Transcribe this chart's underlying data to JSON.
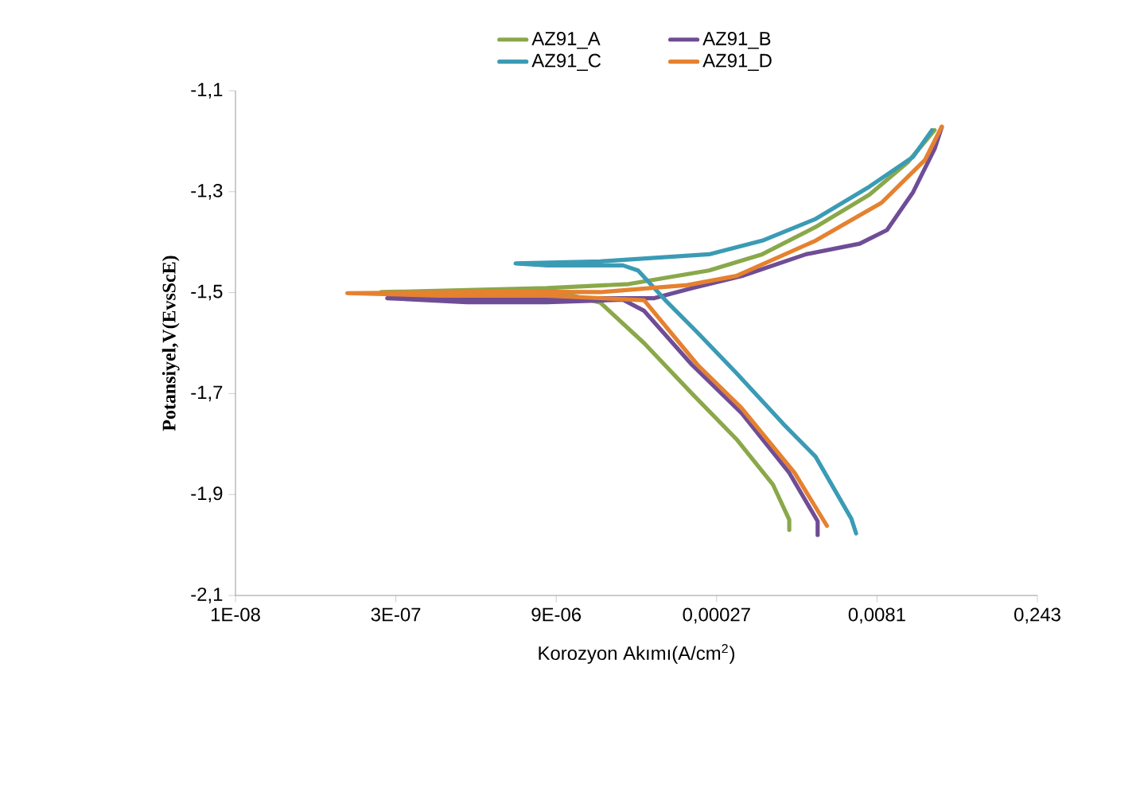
{
  "chart_data": {
    "type": "line",
    "xlabel": "Korozyon Akımı(A/cm$^{2}$)",
    "ylabel": "Potansiyel,V(EvsScE)",
    "log": "x",
    "legend": "top",
    "grid": false,
    "marker": "none",
    "line_style": "solid",
    "xlim": [
      1e-08,
      0.243
    ],
    "xticks": [
      {
        "value": 1e-08,
        "label": "1E-08"
      },
      {
        "value": 3e-07,
        "label": "3E-07"
      },
      {
        "value": 9e-06,
        "label": "9E-06"
      },
      {
        "value": 0.00027,
        "label": "0,00027"
      },
      {
        "value": 0.0081,
        "label": "0,0081"
      },
      {
        "value": 0.243,
        "label": "0,243"
      }
    ],
    "ylim": [
      -2.1,
      -1.1
    ],
    "yticks": [
      {
        "value": -2.1,
        "label": "-2,1"
      },
      {
        "value": -1.9,
        "label": "-1,9"
      },
      {
        "value": -1.7,
        "label": "-1,7"
      },
      {
        "value": -1.5,
        "label": "-1,5"
      },
      {
        "value": -1.3,
        "label": "-1,3"
      },
      {
        "value": -1.1,
        "label": "-1,1"
      }
    ],
    "series": [
      {
        "name": "AZ91_A",
        "color": "#8aa84a",
        "x": [
          0.00126,
          0.00126,
          0.00089,
          0.00041,
          0.00016,
          5.8e-05,
          2.3e-05,
          7.4e-06,
          2.2e-07,
          7.4e-06,
          4.2e-05,
          0.00023,
          0.00071,
          0.0022,
          0.0069,
          0.0155,
          0.0275
        ],
        "values": [
          -1.97,
          -1.95,
          -1.88,
          -1.79,
          -1.7,
          -1.6,
          -1.52,
          -1.493,
          -1.499,
          -1.491,
          -1.483,
          -1.456,
          -1.424,
          -1.37,
          -1.306,
          -1.242,
          -1.178
        ]
      },
      {
        "name": "AZ91_B",
        "color": "#6f4d96",
        "x": [
          0.0023,
          0.0023,
          0.00126,
          0.00046,
          0.00016,
          5.8e-05,
          3.7e-05,
          7.4e-06,
          1.35e-06,
          2.5e-07,
          7.2e-05,
          0.00016,
          0.00046,
          0.0018,
          0.0056,
          0.01,
          0.0174,
          0.0275,
          0.032
        ],
        "values": [
          -1.98,
          -1.953,
          -1.857,
          -1.739,
          -1.643,
          -1.536,
          -1.514,
          -1.519,
          -1.519,
          -1.511,
          -1.511,
          -1.491,
          -1.467,
          -1.424,
          -1.403,
          -1.376,
          -1.301,
          -1.215,
          -1.172
        ]
      },
      {
        "name": "AZ91_C",
        "color": "#3b9bb5",
        "x": [
          0.0052,
          0.0047,
          0.0022,
          0.00112,
          0.00041,
          0.00018,
          9.1e-05,
          5.1e-05,
          3.7e-05,
          7.4e-06,
          3.8e-06,
          2.3e-05,
          0.00023,
          0.00071,
          0.0022,
          0.0069,
          0.0174,
          0.026
        ],
        "values": [
          -1.977,
          -1.948,
          -1.825,
          -1.761,
          -1.659,
          -1.579,
          -1.515,
          -1.456,
          -1.446,
          -1.446,
          -1.442,
          -1.438,
          -1.424,
          -1.397,
          -1.354,
          -1.29,
          -1.231,
          -1.178
        ]
      },
      {
        "name": "AZ91_D",
        "color": "#e5812f",
        "x": [
          0.0028,
          0.00141,
          0.00046,
          0.00018,
          5.8e-05,
          7.4e-06,
          7.6e-07,
          1.07e-07,
          2.4e-06,
          2.3e-05,
          0.000145,
          0.00041,
          0.0022,
          0.0089,
          0.0224,
          0.032
        ],
        "values": [
          -1.962,
          -1.857,
          -1.729,
          -1.643,
          -1.515,
          -1.506,
          -1.506,
          -1.501,
          -1.498,
          -1.499,
          -1.485,
          -1.467,
          -1.397,
          -1.322,
          -1.237,
          -1.171
        ]
      }
    ]
  }
}
